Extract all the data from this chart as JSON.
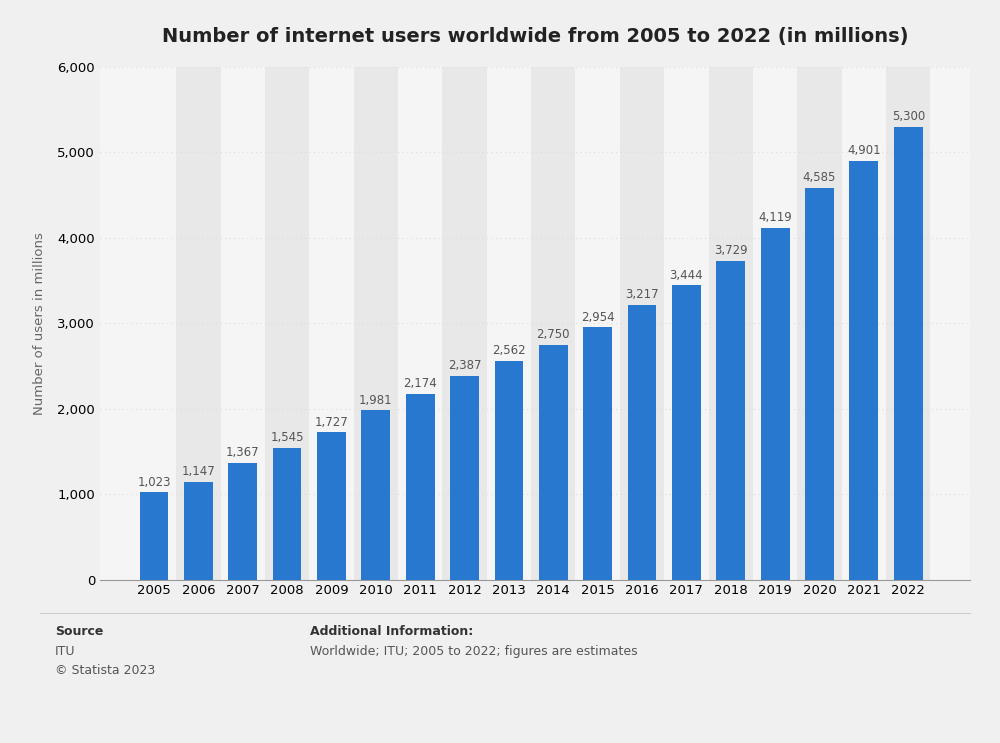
{
  "title": "Number of internet users worldwide from 2005 to 2022 (in millions)",
  "ylabel": "Number of users in millions",
  "years": [
    2005,
    2006,
    2007,
    2008,
    2009,
    2010,
    2011,
    2012,
    2013,
    2014,
    2015,
    2016,
    2017,
    2018,
    2019,
    2020,
    2021,
    2022
  ],
  "values": [
    1023,
    1147,
    1367,
    1545,
    1727,
    1981,
    2174,
    2387,
    2562,
    2750,
    2954,
    3217,
    3444,
    3729,
    4119,
    4585,
    4901,
    5300
  ],
  "bar_color": "#2878d0",
  "background_color": "#f0f0f0",
  "plot_bg_color": "#f5f5f5",
  "alt_col_color": "#e8e8e8",
  "ylim": [
    0,
    6000
  ],
  "yticks": [
    0,
    1000,
    2000,
    3000,
    4000,
    5000,
    6000
  ],
  "grid_color": "#dddddd",
  "title_fontsize": 14,
  "axis_label_fontsize": 9.5,
  "tick_fontsize": 9.5,
  "value_label_fontsize": 8.5,
  "source_label": "Source",
  "source_line1": "ITU",
  "source_line2": "© Statista 2023",
  "additional_info_title": "Additional Information:",
  "additional_info_body": "Worldwide; ITU; 2005 to 2022; figures are estimates"
}
